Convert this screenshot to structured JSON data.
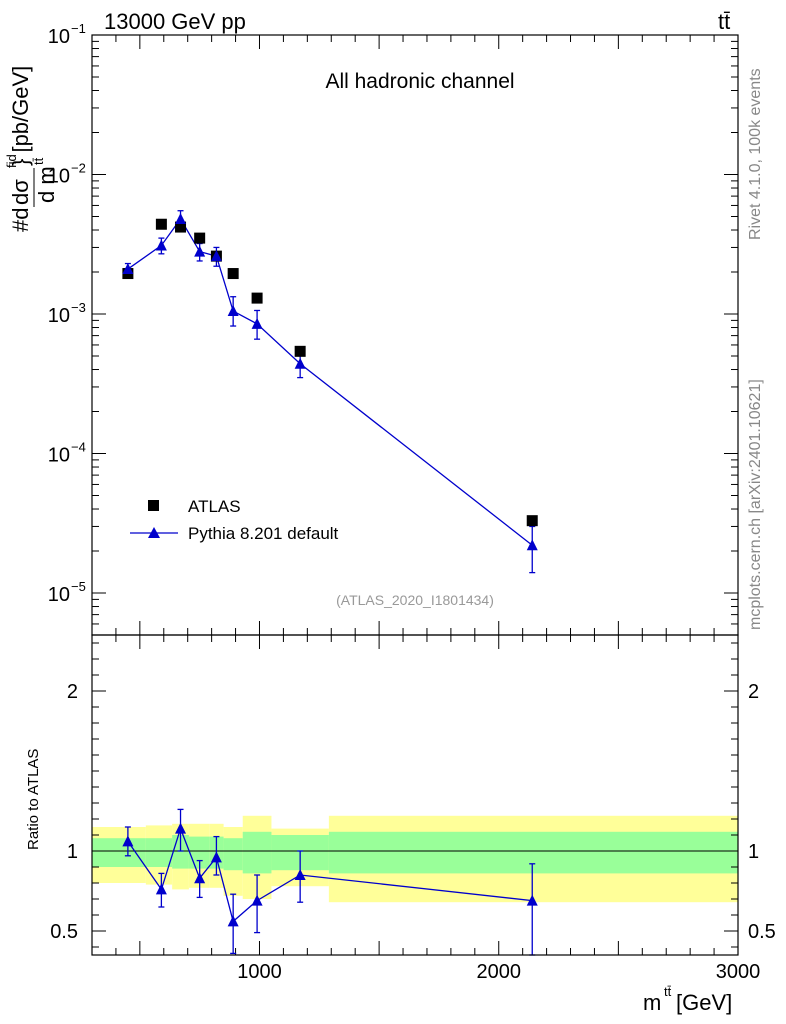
{
  "header": {
    "energy_label": "13000 GeV pp",
    "process_label": "tt̄"
  },
  "side_labels": {
    "rivet": "Rivet 4.1.0,  100k events",
    "mcplots": "mcplots.cern.ch [arXiv:2401.10621]"
  },
  "chart_data": [
    {
      "type": "scatter",
      "panel": "main",
      "title": "All hadronic channel",
      "analysis_label": "(ATLAS_2020_I1801434)",
      "ylabel": "#dσ^{fid}/d m^{tt̄} [pb/GeV]",
      "ylabel_parts": {
        "prefix": "#d",
        "sigma": "dσ",
        "fid": "fid",
        "denom": "d m",
        "tt": "tt̄",
        "unit": "} [pb/GeV]"
      },
      "yscale": "log",
      "xlim": [
        300,
        3000
      ],
      "ylim": [
        5e-06,
        0.1
      ],
      "y_ticks": [
        {
          "value": 1e-05,
          "base": "10",
          "exp": "−5"
        },
        {
          "value": 0.0001,
          "base": "10",
          "exp": "−4"
        },
        {
          "value": 0.001,
          "base": "10",
          "exp": "−3"
        },
        {
          "value": 0.01,
          "base": "10",
          "exp": "−2"
        },
        {
          "value": 0.1,
          "base": "10",
          "exp": "−1"
        }
      ],
      "legend": [
        {
          "label": "ATLAS",
          "marker": "square",
          "color": "#000000"
        },
        {
          "label": "Pythia 8.201 default",
          "marker": "triangle",
          "color": "#0000cc"
        }
      ],
      "series": [
        {
          "name": "ATLAS",
          "x": [
            450,
            590,
            670,
            750,
            820,
            890,
            990,
            1170,
            2140
          ],
          "y": [
            0.00195,
            0.0044,
            0.0042,
            0.0035,
            0.0026,
            0.00195,
            0.0013,
            0.00054,
            3.3e-05
          ]
        },
        {
          "name": "Pythia 8.201 default",
          "x": [
            450,
            590,
            670,
            750,
            820,
            890,
            990,
            1170,
            2140
          ],
          "y": [
            0.0021,
            0.0031,
            0.0048,
            0.0028,
            0.0026,
            0.00105,
            0.00085,
            0.00044,
            2.2e-05
          ],
          "yerr_low": [
            0.0019,
            0.0027,
            0.0041,
            0.0024,
            0.0022,
            0.00082,
            0.00066,
            0.00035,
            1.4e-05
          ],
          "yerr_high": [
            0.0023,
            0.0035,
            0.0055,
            0.0032,
            0.003,
            0.00133,
            0.00106,
            0.00053,
            3e-05
          ]
        }
      ]
    },
    {
      "type": "line",
      "panel": "ratio",
      "ylabel": "Ratio to ATLAS",
      "xlabel_parts": {
        "m": "m",
        "sup": "tt̄",
        "unit": " [GeV]"
      },
      "ylim": [
        0.35,
        2.35
      ],
      "y_ticks": [
        0.5,
        1,
        2
      ],
      "y_tick_labels": [
        "0.5",
        "1",
        "2"
      ],
      "x_ticks": [
        1000,
        2000,
        3000
      ],
      "x_tick_labels": [
        "1000",
        "2000",
        "3000"
      ],
      "bands": [
        {
          "x0": 300,
          "x1": 525,
          "inner": [
            0.9,
            1.08
          ],
          "outer": [
            0.8,
            1.15
          ]
        },
        {
          "x0": 525,
          "x1": 635,
          "inner": [
            0.9,
            1.08
          ],
          "outer": [
            0.79,
            1.16
          ]
        },
        {
          "x0": 635,
          "x1": 705,
          "inner": [
            0.89,
            1.1
          ],
          "outer": [
            0.76,
            1.17
          ]
        },
        {
          "x0": 705,
          "x1": 790,
          "inner": [
            0.89,
            1.09
          ],
          "outer": [
            0.77,
            1.17
          ]
        },
        {
          "x0": 790,
          "x1": 850,
          "inner": [
            0.89,
            1.09
          ],
          "outer": [
            0.77,
            1.17
          ]
        },
        {
          "x0": 850,
          "x1": 930,
          "inner": [
            0.88,
            1.08
          ],
          "outer": [
            0.72,
            1.15
          ]
        },
        {
          "x0": 930,
          "x1": 1050,
          "inner": [
            0.86,
            1.12
          ],
          "outer": [
            0.7,
            1.22
          ]
        },
        {
          "x0": 1050,
          "x1": 1290,
          "inner": [
            0.88,
            1.1
          ],
          "outer": [
            0.78,
            1.14
          ]
        },
        {
          "x0": 1290,
          "x1": 3000,
          "inner": [
            0.86,
            1.12
          ],
          "outer": [
            0.68,
            1.22
          ]
        }
      ],
      "reference_line": 1,
      "series": [
        {
          "name": "Pythia 8.201 default / ATLAS",
          "x": [
            450,
            590,
            670,
            750,
            820,
            890,
            990,
            1170,
            2140
          ],
          "y": [
            1.06,
            0.76,
            1.14,
            0.83,
            0.96,
            0.56,
            0.69,
            0.85,
            0.69
          ],
          "yerr_low": [
            0.97,
            0.65,
            1.0,
            0.71,
            0.85,
            0.36,
            0.49,
            0.68,
            0.35
          ],
          "yerr_high": [
            1.15,
            0.86,
            1.26,
            0.94,
            1.09,
            0.73,
            0.85,
            1.0,
            0.92
          ]
        }
      ]
    }
  ]
}
